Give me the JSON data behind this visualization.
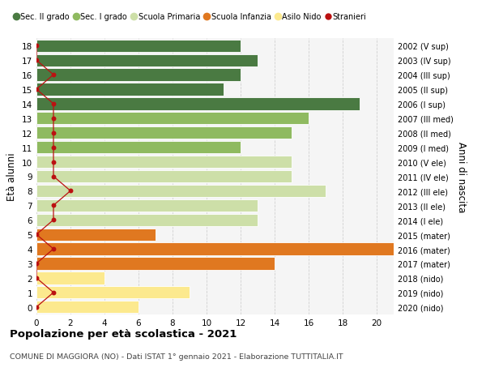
{
  "ages": [
    0,
    1,
    2,
    3,
    4,
    5,
    6,
    7,
    8,
    9,
    10,
    11,
    12,
    13,
    14,
    15,
    16,
    17,
    18
  ],
  "years": [
    "2020 (nido)",
    "2019 (nido)",
    "2018 (nido)",
    "2017 (mater)",
    "2016 (mater)",
    "2015 (mater)",
    "2014 (I ele)",
    "2013 (II ele)",
    "2012 (III ele)",
    "2011 (IV ele)",
    "2010 (V ele)",
    "2009 (I med)",
    "2008 (II med)",
    "2007 (III med)",
    "2006 (I sup)",
    "2005 (II sup)",
    "2004 (III sup)",
    "2003 (IV sup)",
    "2002 (V sup)"
  ],
  "values": [
    6,
    9,
    4,
    14,
    21,
    7,
    13,
    13,
    17,
    15,
    15,
    12,
    15,
    16,
    19,
    11,
    12,
    13,
    12
  ],
  "stranieri": [
    0,
    1,
    0,
    0,
    1,
    0,
    1,
    1,
    2,
    1,
    1,
    1,
    1,
    1,
    1,
    0,
    1,
    0,
    0
  ],
  "categories": {
    "Asilo Nido": [
      0,
      1,
      2
    ],
    "Scuola Infanzia": [
      3,
      4,
      5
    ],
    "Scuola Primaria": [
      6,
      7,
      8,
      9,
      10
    ],
    "Sec. I grado": [
      11,
      12,
      13
    ],
    "Sec. II grado": [
      14,
      15,
      16,
      17,
      18
    ]
  },
  "colors": {
    "Asilo Nido": "#fce98e",
    "Scuola Infanzia": "#e07820",
    "Scuola Primaria": "#cddfa8",
    "Sec. I grado": "#8fba60",
    "Sec. II grado": "#4a7a42"
  },
  "legend_colors": {
    "Sec. II grado": "#4a7a42",
    "Sec. I grado": "#8fba60",
    "Scuola Primaria": "#cddfa8",
    "Scuola Infanzia": "#e07820",
    "Asilo Nido": "#fce98e",
    "Stranieri": "#bb1111"
  },
  "stranieri_color": "#bb1111",
  "bg_color": "#f5f5f5",
  "grid_color": "#d0d0d0",
  "title": "Popolazione per età scolastica - 2021",
  "subtitle": "COMUNE DI MAGGIORA (NO) - Dati ISTAT 1° gennaio 2021 - Elaborazione TUTTITALIA.IT",
  "ylabel": "Età alunni",
  "ylabel2": "Anni di nascita",
  "xlim": [
    0,
    21
  ],
  "xticks": [
    0,
    2,
    4,
    6,
    8,
    10,
    12,
    14,
    16,
    18,
    20
  ]
}
